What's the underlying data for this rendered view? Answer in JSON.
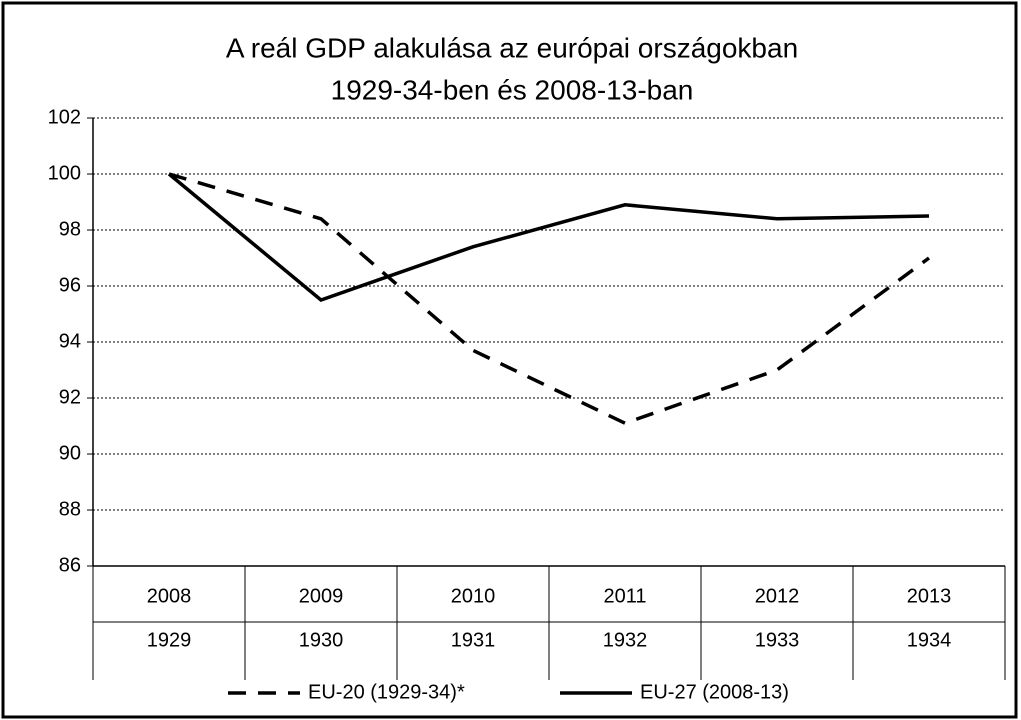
{
  "chart_data": {
    "type": "line",
    "title": [
      "A reál GDP alakulása az európai országokban",
      "1929-34-ben és 2008-13-ban"
    ],
    "categories": [
      "2008",
      "2009",
      "2010",
      "2011",
      "2012",
      "2013"
    ],
    "categories_secondary": [
      "1929",
      "1930",
      "1931",
      "1932",
      "1933",
      "1934"
    ],
    "series": [
      {
        "name": "EU-20 (1929-34)*",
        "color": "#000000",
        "dash": true,
        "values": [
          100,
          98.4,
          93.7,
          91.1,
          93.0,
          97.0
        ]
      },
      {
        "name": "EU-27 (2008-13)",
        "color": "#000000",
        "dash": false,
        "values": [
          100,
          95.5,
          97.4,
          98.9,
          98.4,
          98.5
        ]
      }
    ],
    "ylim": [
      86,
      102
    ],
    "yticks": [
      86,
      88,
      90,
      92,
      94,
      96,
      98,
      100,
      102
    ],
    "grid": true,
    "legend": "bottom"
  }
}
